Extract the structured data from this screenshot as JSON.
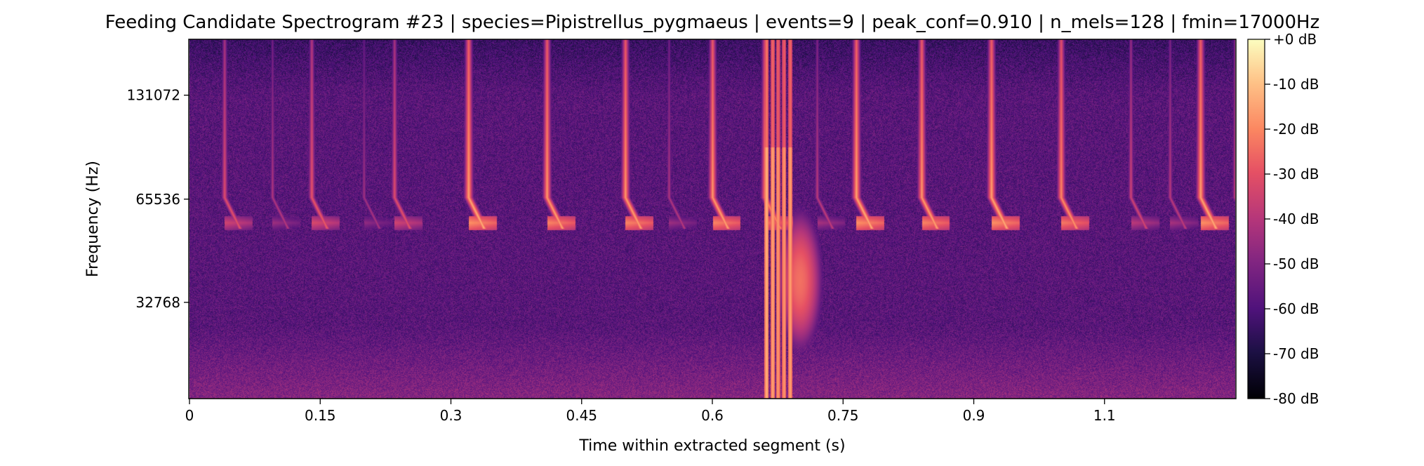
{
  "chart_data": {
    "type": "heatmap",
    "subtype": "mel-spectrogram",
    "title": "Feeding Candidate Spectrogram #23 | species=Pipistrellus_pygmaeus | events=9 | peak_conf=0.910 | n_mels=128 | fmin=17000Hz",
    "xlabel": "Time within extracted segment (s)",
    "ylabel": "Frequency (Hz)",
    "xlim": [
      0,
      1.2
    ],
    "x_ticks": [
      0,
      0.15,
      0.3,
      0.45,
      0.6,
      0.75,
      0.9,
      1.05
    ],
    "x_tick_labels": [
      "0",
      "0.15",
      "0.3",
      "0.45",
      "0.6",
      "0.75",
      "0.9",
      "1.1"
    ],
    "y_scale": "mel",
    "ylim": [
      17000,
      190000
    ],
    "y_ticks": [
      32768,
      65536,
      131072
    ],
    "y_tick_labels": [
      "32768",
      "65536",
      "131072"
    ],
    "colormap": "magma",
    "colorbar": {
      "range": [
        -80,
        0
      ],
      "ticks": [
        0,
        -10,
        -20,
        -30,
        -40,
        -50,
        -60,
        -70,
        -80
      ],
      "tick_labels": [
        "+0 dB",
        "-10 dB",
        "-20 dB",
        "-30 dB",
        "-40 dB",
        "-50 dB",
        "-60 dB",
        "-70 dB",
        "-80 dB"
      ]
    },
    "background_level_db": -58,
    "call_band_hz": [
      55000,
      200000
    ],
    "call_base_hz": 55000,
    "calls": [
      {
        "t": 0.04,
        "db": -28
      },
      {
        "t": 0.095,
        "db": -38
      },
      {
        "t": 0.14,
        "db": -26
      },
      {
        "t": 0.2,
        "db": -40
      },
      {
        "t": 0.235,
        "db": -28
      },
      {
        "t": 0.32,
        "db": -12
      },
      {
        "t": 0.41,
        "db": -14
      },
      {
        "t": 0.5,
        "db": -14
      },
      {
        "t": 0.55,
        "db": -38
      },
      {
        "t": 0.6,
        "db": -14
      },
      {
        "t": 0.66,
        "db": -18
      },
      {
        "t": 0.72,
        "db": -36
      },
      {
        "t": 0.765,
        "db": -12
      },
      {
        "t": 0.84,
        "db": -14
      },
      {
        "t": 0.92,
        "db": -12
      },
      {
        "t": 1.0,
        "db": -16
      },
      {
        "t": 1.08,
        "db": -32
      },
      {
        "t": 1.125,
        "db": -36
      },
      {
        "t": 1.16,
        "db": -12
      },
      {
        "t": 1.2,
        "db": -30
      }
    ],
    "broadband_clicks": [
      {
        "t": 0.662,
        "db": -12
      },
      {
        "t": 0.669,
        "db": -14
      },
      {
        "t": 0.675,
        "db": -16
      },
      {
        "t": 0.682,
        "db": -16
      },
      {
        "t": 0.689,
        "db": -14
      }
    ],
    "broadband_burst": {
      "t": 0.7,
      "f_hz": 38000,
      "db": -24
    }
  },
  "colors": {
    "background": "#ffffff",
    "axis": "#000000"
  }
}
